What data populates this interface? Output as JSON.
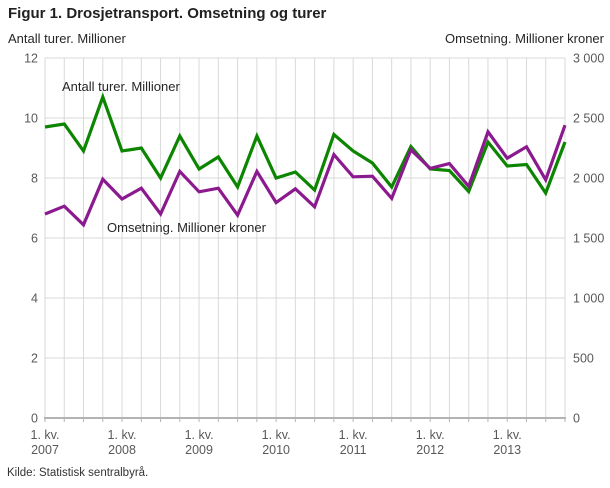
{
  "title": "Figur 1. Drosjetransport. Omsetning og turer",
  "axis_left_label": "Antall turer. Millioner",
  "axis_right_label": "Omsetning. Millioner kroner",
  "source": "Kilde: Statistisk sentralbyrå.",
  "colors": {
    "trips_line": "#0c8500",
    "revenue_line": "#8b1a8f",
    "gridline": "#d9d9d9",
    "axis_line": "#b3b3b3",
    "tick_text": "#595959",
    "label_text": "#262626",
    "title_text": "#212121"
  },
  "chart_data": {
    "type": "line",
    "title": "Figur 1. Drosjetransport. Omsetning og turer",
    "grid": true,
    "legend_position": "inline-labels",
    "categories": [
      "1. kv. 2007",
      "2. kv. 2007",
      "3. kv. 2007",
      "4. kv. 2007",
      "1. kv. 2008",
      "2. kv. 2008",
      "3. kv. 2008",
      "4. kv. 2008",
      "1. kv. 2009",
      "2. kv. 2009",
      "3. kv. 2009",
      "4. kv. 2009",
      "1. kv. 2010",
      "2. kv. 2010",
      "3. kv. 2010",
      "4. kv. 2010",
      "1. kv. 2011",
      "2. kv. 2011",
      "3. kv. 2011",
      "4. kv. 2011",
      "1. kv. 2012",
      "2. kv. 2012",
      "3. kv. 2012",
      "4. kv. 2012",
      "1. kv. 2013",
      "2. kv. 2013",
      "3. kv. 2013",
      "4. kv. 2013"
    ],
    "x_ticks": [
      {
        "index": 0,
        "line1": "1. kv.",
        "line2": "2007"
      },
      {
        "index": 4,
        "line1": "1. kv.",
        "line2": "2008"
      },
      {
        "index": 8,
        "line1": "1. kv.",
        "line2": "2009"
      },
      {
        "index": 12,
        "line1": "1. kv.",
        "line2": "2010"
      },
      {
        "index": 16,
        "line1": "1. kv.",
        "line2": "2011"
      },
      {
        "index": 20,
        "line1": "1. kv.",
        "line2": "2012"
      },
      {
        "index": 24,
        "line1": "1. kv.",
        "line2": "2013"
      }
    ],
    "left_axis": {
      "label": "Antall turer. Millioner",
      "min": 0,
      "max": 12,
      "ticks": [
        {
          "value": 12,
          "label": "12"
        },
        {
          "value": 10,
          "label": "10"
        },
        {
          "value": 8,
          "label": "8"
        },
        {
          "value": 6,
          "label": "6"
        },
        {
          "value": 4,
          "label": "4"
        },
        {
          "value": 2,
          "label": "2"
        },
        {
          "value": 0,
          "label": "0"
        }
      ]
    },
    "right_axis": {
      "label": "Omsetning. Millioner kroner",
      "min": 0,
      "max": 3000,
      "ticks": [
        {
          "value": 3000,
          "label": "3 000"
        },
        {
          "value": 2500,
          "label": "2 500"
        },
        {
          "value": 2000,
          "label": "2 000"
        },
        {
          "value": 1500,
          "label": "1 500"
        },
        {
          "value": 1000,
          "label": "1 000"
        },
        {
          "value": 500,
          "label": "500"
        },
        {
          "value": 0,
          "label": "0"
        }
      ]
    },
    "series": [
      {
        "name": "Antall turer. Millioner",
        "axis": "left",
        "color": "#0c8500",
        "values": [
          9.7,
          9.8,
          8.9,
          10.7,
          8.9,
          9.0,
          8.0,
          9.4,
          8.3,
          8.7,
          7.7,
          9.4,
          8.0,
          8.2,
          7.6,
          9.45,
          8.9,
          8.5,
          7.7,
          9.05,
          8.3,
          8.25,
          7.55,
          9.2,
          8.4,
          8.45,
          7.5,
          9.2
        ]
      },
      {
        "name": "Omsetning. Millioner kroner",
        "axis": "right",
        "color": "#8b1a8f",
        "values": [
          1700,
          1765,
          1610,
          1990,
          1825,
          1915,
          1700,
          2055,
          1885,
          1915,
          1690,
          2055,
          1795,
          1910,
          1760,
          2195,
          2010,
          2015,
          1830,
          2235,
          2080,
          2120,
          1930,
          2385,
          2165,
          2260,
          1985,
          2440
        ]
      }
    ]
  }
}
